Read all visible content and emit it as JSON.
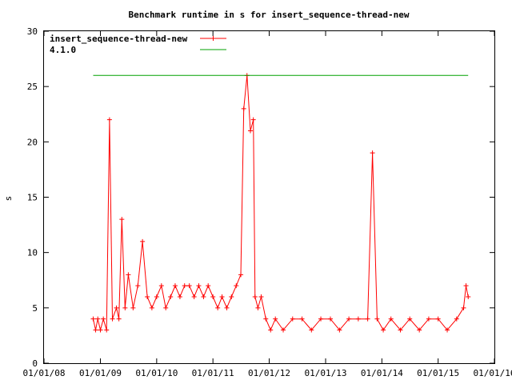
{
  "chart_data": {
    "type": "line",
    "title": "Benchmark runtime in s for insert_sequence-thread-new",
    "xlabel": "",
    "ylabel": "s",
    "ylim": [
      0,
      30
    ],
    "y_ticks": [
      "0",
      "5",
      "10",
      "15",
      "20",
      "25",
      "30"
    ],
    "xlim": [
      "2008-01-01",
      "2016-01-01"
    ],
    "x_ticks": [
      "01/01/08",
      "01/01/09",
      "01/01/10",
      "01/01/11",
      "01/01/12",
      "01/01/13",
      "01/01/14",
      "01/01/15",
      "01/01/16"
    ],
    "x_tick_dates": [
      "2008-01-01",
      "2009-01-01",
      "2010-01-01",
      "2011-01-01",
      "2012-01-01",
      "2013-01-01",
      "2014-01-01",
      "2015-01-01",
      "2016-01-01"
    ],
    "grid": false,
    "legend_position": "top-left",
    "series": [
      {
        "name": "insert_sequence-thread-new",
        "color": "#ff0000",
        "marker": "plus",
        "points": [
          [
            "2008-11-15",
            4
          ],
          [
            "2008-12-01",
            3
          ],
          [
            "2008-12-15",
            4
          ],
          [
            "2009-01-01",
            3
          ],
          [
            "2009-01-20",
            4
          ],
          [
            "2009-02-10",
            3
          ],
          [
            "2009-03-01",
            22
          ],
          [
            "2009-03-20",
            4
          ],
          [
            "2009-04-15",
            5
          ],
          [
            "2009-05-01",
            4
          ],
          [
            "2009-05-20",
            13
          ],
          [
            "2009-06-10",
            5
          ],
          [
            "2009-07-01",
            8
          ],
          [
            "2009-08-01",
            5
          ],
          [
            "2009-09-01",
            7
          ],
          [
            "2009-10-01",
            11
          ],
          [
            "2009-11-01",
            6
          ],
          [
            "2009-12-01",
            5
          ],
          [
            "2010-01-01",
            6
          ],
          [
            "2010-02-01",
            7
          ],
          [
            "2010-03-01",
            5
          ],
          [
            "2010-04-01",
            6
          ],
          [
            "2010-05-01",
            7
          ],
          [
            "2010-06-01",
            6
          ],
          [
            "2010-07-01",
            7
          ],
          [
            "2010-08-01",
            7
          ],
          [
            "2010-09-01",
            6
          ],
          [
            "2010-10-01",
            7
          ],
          [
            "2010-11-01",
            6
          ],
          [
            "2010-12-01",
            7
          ],
          [
            "2011-01-01",
            6
          ],
          [
            "2011-02-01",
            5
          ],
          [
            "2011-03-01",
            6
          ],
          [
            "2011-04-01",
            5
          ],
          [
            "2011-05-01",
            6
          ],
          [
            "2011-06-01",
            7
          ],
          [
            "2011-07-01",
            8
          ],
          [
            "2011-07-20",
            23
          ],
          [
            "2011-08-10",
            26
          ],
          [
            "2011-09-01",
            21
          ],
          [
            "2011-09-20",
            22
          ],
          [
            "2011-10-01",
            6
          ],
          [
            "2011-10-20",
            5
          ],
          [
            "2011-11-10",
            6
          ],
          [
            "2011-12-10",
            4
          ],
          [
            "2012-01-10",
            3
          ],
          [
            "2012-02-10",
            4
          ],
          [
            "2012-04-01",
            3
          ],
          [
            "2012-06-01",
            4
          ],
          [
            "2012-08-01",
            4
          ],
          [
            "2012-10-01",
            3
          ],
          [
            "2012-12-01",
            4
          ],
          [
            "2013-02-01",
            4
          ],
          [
            "2013-04-01",
            3
          ],
          [
            "2013-06-01",
            4
          ],
          [
            "2013-08-01",
            4
          ],
          [
            "2013-10-01",
            4
          ],
          [
            "2013-11-01",
            19
          ],
          [
            "2013-12-01",
            4
          ],
          [
            "2014-01-10",
            3
          ],
          [
            "2014-03-01",
            4
          ],
          [
            "2014-05-01",
            3
          ],
          [
            "2014-07-01",
            4
          ],
          [
            "2014-09-01",
            3
          ],
          [
            "2014-11-01",
            4
          ],
          [
            "2015-01-01",
            4
          ],
          [
            "2015-03-01",
            3
          ],
          [
            "2015-05-01",
            4
          ],
          [
            "2015-06-15",
            5
          ],
          [
            "2015-07-01",
            7
          ],
          [
            "2015-07-15",
            6
          ]
        ]
      },
      {
        "name": "4.1.0",
        "color": "#00a000",
        "marker": "none",
        "points": [
          [
            "2008-11-15",
            26
          ],
          [
            "2015-07-15",
            26
          ]
        ]
      }
    ]
  }
}
